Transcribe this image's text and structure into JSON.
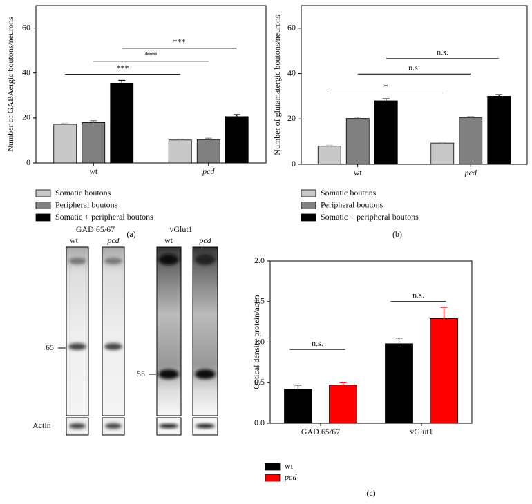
{
  "chart_data": [
    {
      "type": "bar",
      "ylabel": "Number of GABAergic boutons/neurons",
      "categories": [
        "wt",
        "pcd"
      ],
      "series": [
        {
          "name": "Somatic boutons",
          "color": "#c8c8c8",
          "values": [
            17.2,
            10.2
          ],
          "errors": [
            0.5,
            0.4
          ]
        },
        {
          "name": "Peripheral boutons",
          "color": "#808080",
          "values": [
            18.0,
            10.4
          ],
          "errors": [
            0.8,
            0.6
          ]
        },
        {
          "name": "Somatic + peripheral boutons",
          "color": "#000000",
          "values": [
            35.5,
            20.6
          ],
          "errors": [
            1.2,
            0.9
          ]
        }
      ],
      "ylim": [
        0,
        70
      ],
      "yticks": [
        0,
        20,
        40,
        60
      ],
      "annotations": [
        {
          "text": "***",
          "y": 39.4
        },
        {
          "text": "***",
          "y": 45.2
        },
        {
          "text": "***",
          "y": 51.0
        }
      ],
      "caption": "(a)"
    },
    {
      "type": "bar",
      "ylabel": "Number of glutamatergic boutons/neurons",
      "categories": [
        "wt",
        "pcd"
      ],
      "series": [
        {
          "name": "Somatic boutons",
          "color": "#c8c8c8",
          "values": [
            8.0,
            9.4
          ],
          "errors": [
            0.4,
            0.3
          ]
        },
        {
          "name": "Peripheral boutons",
          "color": "#808080",
          "values": [
            20.2,
            20.5
          ],
          "errors": [
            0.6,
            0.5
          ]
        },
        {
          "name": "Somatic + peripheral boutons",
          "color": "#000000",
          "values": [
            28.0,
            30.0
          ],
          "errors": [
            0.9,
            0.7
          ]
        }
      ],
      "ylim": [
        0,
        70
      ],
      "yticks": [
        0,
        20,
        40,
        60
      ],
      "annotations": [
        {
          "text": "*",
          "y": 31.5
        },
        {
          "text": "n.s.",
          "y": 39.8
        },
        {
          "text": "n.s.",
          "y": 46.6
        }
      ],
      "caption": "(b)"
    },
    {
      "type": "bar",
      "ylabel": "Optical density protein/actin",
      "categories": [
        "GAD 65/67",
        "vGlut1"
      ],
      "series": [
        {
          "name": "wt",
          "color": "#000000",
          "values": [
            0.42,
            0.98
          ],
          "errors": [
            0.05,
            0.07
          ]
        },
        {
          "name": "pcd",
          "color": "#ff0000",
          "values": [
            0.47,
            1.29
          ],
          "errors": [
            0.03,
            0.14
          ]
        }
      ],
      "ylim": [
        0,
        2.0
      ],
      "yticks": [
        {
          "value": 0,
          "label": "0.0"
        },
        0.5,
        {
          "value": 1,
          "label": "1.0"
        },
        1.5,
        {
          "value": 2,
          "label": "2.0"
        }
      ],
      "annotations": [
        {
          "text": "n.s.",
          "y": 0.91
        },
        {
          "text": "n.s.",
          "y": 1.5
        }
      ],
      "caption": "(c)"
    }
  ],
  "blots": {
    "gad_title": "GAD 65/67",
    "gad_wt": "wt",
    "gad_pcd": "pcd",
    "vglut_title": "vGlut1",
    "vglut_wt": "wt",
    "vglut_pcd": "pcd",
    "marker_65": "65",
    "marker_55": "55",
    "actin": "Actin"
  }
}
